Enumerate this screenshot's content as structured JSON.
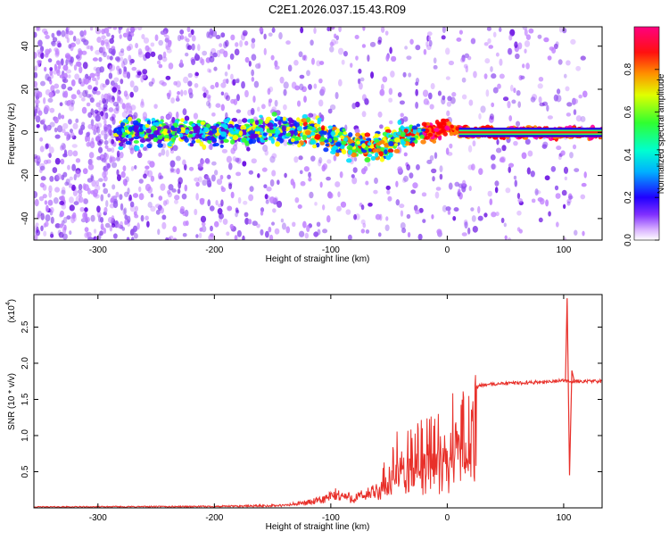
{
  "figure": {
    "title": "C2E1.2026.037.15.43.R09"
  },
  "chart_data": [
    {
      "type": "heatmap",
      "xlabel": "Height of straight line (km)",
      "ylabel": "Frequency (Hz)",
      "xlim": [
        -355,
        133
      ],
      "ylim": [
        -50,
        49
      ],
      "xticks": [
        -300,
        -200,
        -100,
        0,
        100
      ],
      "yticks": [
        -40,
        -20,
        0,
        20,
        40
      ],
      "colorbar": {
        "label": "Normalized spectral amplitude",
        "range": [
          0,
          1
        ],
        "ticks": [
          0.0,
          0.2,
          0.4,
          0.6,
          0.8
        ],
        "colormap": "rainbow",
        "colors": [
          "#ffffff",
          "#c080ff",
          "#6000e0",
          "#0030ff",
          "#00e0ff",
          "#30ff30",
          "#ffff00",
          "#ff8000",
          "#ff0000",
          "#ff00a0"
        ]
      },
      "ridge_center": [
        {
          "x": -280,
          "y": 0
        },
        {
          "x": -200,
          "y": 0
        },
        {
          "x": -140,
          "y": 1
        },
        {
          "x": -110,
          "y": 0
        },
        {
          "x": -90,
          "y": -4
        },
        {
          "x": -70,
          "y": -7
        },
        {
          "x": -55,
          "y": -6
        },
        {
          "x": -40,
          "y": -2
        },
        {
          "x": -20,
          "y": 0
        },
        {
          "x": 0,
          "y": 2
        },
        {
          "x": 20,
          "y": 0
        },
        {
          "x": 133,
          "y": 0
        }
      ],
      "grid": false
    },
    {
      "type": "line",
      "xlabel": "Height of straight line (km)",
      "ylabel": "SNR (10 * v/v)",
      "yscale_label": "(x10",
      "yscale_exp": "4",
      "xlim": [
        -355,
        133
      ],
      "ylim": [
        0,
        2.95
      ],
      "xticks": [
        -300,
        -200,
        -100,
        0,
        100
      ],
      "yticks": [
        0.5,
        1.0,
        1.5,
        2.0,
        2.5
      ],
      "line_color": "#e8302a",
      "envelope": [
        {
          "x": -355,
          "y": 0.02
        },
        {
          "x": -200,
          "y": 0.03
        },
        {
          "x": -140,
          "y": 0.05
        },
        {
          "x": -110,
          "y": 0.15
        },
        {
          "x": -95,
          "y": 0.28
        },
        {
          "x": -80,
          "y": 0.2
        },
        {
          "x": -60,
          "y": 0.35
        },
        {
          "x": -50,
          "y": 0.75
        },
        {
          "x": -40,
          "y": 1.0
        },
        {
          "x": -30,
          "y": 1.05
        },
        {
          "x": -20,
          "y": 1.1
        },
        {
          "x": -10,
          "y": 1.2
        },
        {
          "x": 0,
          "y": 1.3
        },
        {
          "x": 10,
          "y": 1.48
        },
        {
          "x": 20,
          "y": 1.62
        },
        {
          "x": 30,
          "y": 1.7
        },
        {
          "x": 50,
          "y": 1.72
        },
        {
          "x": 80,
          "y": 1.74
        },
        {
          "x": 100,
          "y": 1.76
        },
        {
          "x": 104,
          "y": 1.75
        },
        {
          "x": 133,
          "y": 1.75
        }
      ],
      "spike": [
        {
          "x": 103,
          "y": 2.9
        },
        {
          "x": 105,
          "y": 0.45
        },
        {
          "x": 107,
          "y": 1.9
        }
      ],
      "grid": false
    }
  ]
}
